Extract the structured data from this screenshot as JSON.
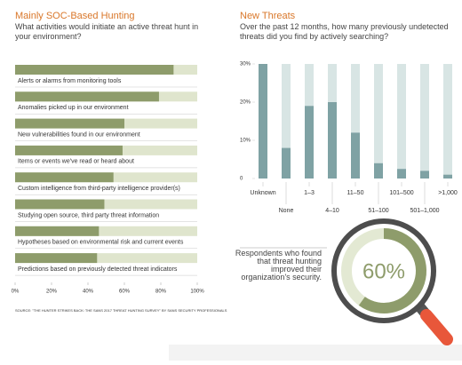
{
  "chart_data": [
    {
      "type": "bar",
      "orientation": "horizontal",
      "title": "Mainly SOC-Based Hunting",
      "subtitle": "What activities would initiate an active threat hunt in your environment?",
      "categories": [
        "Alerts or alarms from monitoring tools",
        "Anomalies picked up in our environment",
        "New vulnerabilities found in our environment",
        "Items or events we've read or heard about",
        "Custom intelligence from third-party intelligence provider(s)",
        "Studying open source, third party threat information",
        "Hypotheses based on environmental risk and current events",
        "Predictions based on previously detected threat indicators"
      ],
      "values": [
        87,
        79,
        60,
        59,
        54,
        49,
        46,
        45
      ],
      "color": "#8e9c6b",
      "track_color": "#dfe5cd",
      "xlim": [
        0,
        100
      ],
      "xticks": [
        {
          "value": 0,
          "label": "0%"
        },
        {
          "value": 20,
          "label": "20%"
        },
        {
          "value": 40,
          "label": "40%"
        },
        {
          "value": 60,
          "label": "60%"
        },
        {
          "value": 80,
          "label": "80%"
        },
        {
          "value": 100,
          "label": "100%"
        }
      ],
      "source": "SOURCE: \"THE HUNTER STRIKES BACK: THE SANS 2017 THREAT HUNTING SURVEY\" BY SANS SECURITY PROFESSIONALS"
    },
    {
      "type": "bar",
      "orientation": "vertical",
      "title": "New Threats",
      "subtitle": "Over the past 12 months, how many previously undetected threats did you find by actively searching?",
      "categories": [
        "Unknown",
        "None",
        "1–3",
        "4–10",
        "11–50",
        "51–100",
        "101–500",
        "501–1,000",
        ">1,000"
      ],
      "values": [
        30,
        8,
        19,
        20,
        12,
        4,
        2.5,
        2,
        1
      ],
      "color": "#7fa2a4",
      "track_color": "#d8e5e4",
      "ylim": [
        0,
        30
      ],
      "yticks": [
        0,
        {
          "value": 10,
          "label": "10%"
        },
        {
          "value": 20,
          "label": "20%"
        },
        {
          "value": 30,
          "label": "30%"
        }
      ]
    }
  ],
  "callout": {
    "text": "Respondents who found that threat hunting improved their organization's security.",
    "value": 60,
    "value_label": "60%"
  }
}
